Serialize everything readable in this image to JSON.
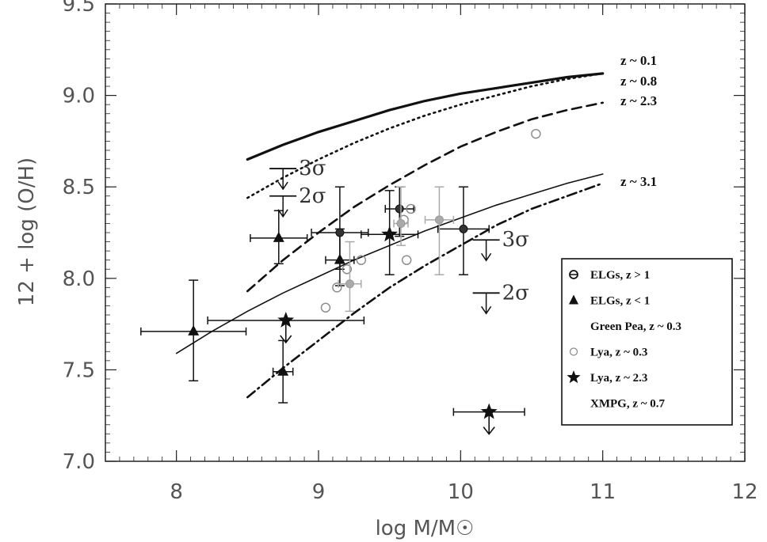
{
  "chart_data": {
    "type": "scatter",
    "xlabel": "log M/M☉",
    "ylabel": "12 + log (O/H)",
    "xlim": [
      7.5,
      12
    ],
    "ylim": [
      7.0,
      9.5
    ],
    "xticks": [
      "8",
      "9",
      "10",
      "11",
      "12"
    ],
    "yticks": [
      "7.0",
      "7.5",
      "8.0",
      "8.5",
      "9.0",
      "9.5"
    ],
    "grid": false,
    "legend_position": "right",
    "curves": [
      {
        "name": "z ~ 0.1",
        "style": "solid-thick",
        "x": [
          8.5,
          8.75,
          9.0,
          9.25,
          9.5,
          9.75,
          10.0,
          10.25,
          10.5,
          10.75,
          11.0
        ],
        "y": [
          8.65,
          8.73,
          8.8,
          8.86,
          8.92,
          8.97,
          9.01,
          9.04,
          9.07,
          9.1,
          9.12
        ]
      },
      {
        "name": "z ~ 0.8",
        "style": "dotted",
        "x": [
          8.5,
          8.75,
          9.0,
          9.25,
          9.5,
          9.75,
          10.0,
          10.25,
          10.5,
          10.75,
          11.0
        ],
        "y": [
          8.44,
          8.55,
          8.65,
          8.74,
          8.82,
          8.89,
          8.95,
          9.0,
          9.05,
          9.09,
          9.12
        ]
      },
      {
        "name": "z ~ 2.3",
        "style": "dashed",
        "x": [
          8.5,
          8.75,
          9.0,
          9.25,
          9.5,
          9.75,
          10.0,
          10.25,
          10.5,
          10.75,
          11.0
        ],
        "y": [
          7.93,
          8.1,
          8.25,
          8.39,
          8.51,
          8.62,
          8.72,
          8.8,
          8.87,
          8.92,
          8.96
        ]
      },
      {
        "name": "z ~ 3.1",
        "style": "solid-thin",
        "x": [
          8.0,
          8.25,
          8.5,
          8.75,
          9.0,
          9.25,
          9.5,
          9.75,
          10.0,
          10.25,
          10.5,
          10.75,
          11.0
        ],
        "y": [
          7.59,
          7.71,
          7.82,
          7.92,
          8.01,
          8.1,
          8.18,
          8.26,
          8.33,
          8.4,
          8.46,
          8.52,
          8.57
        ]
      },
      {
        "name": "",
        "style": "dash-dot",
        "x": [
          8.5,
          8.75,
          9.0,
          9.25,
          9.5,
          9.75,
          10.0,
          10.25,
          10.5,
          10.75,
          11.0
        ],
        "y": [
          7.35,
          7.51,
          7.66,
          7.81,
          7.95,
          8.07,
          8.18,
          8.29,
          8.38,
          8.45,
          8.52
        ]
      }
    ],
    "points": [
      {
        "series": "ELGs, z < 1",
        "marker": "triangle",
        "x": 8.12,
        "y": 7.71,
        "xerr": 0.37,
        "yerr_lo": 0.27,
        "yerr_hi": 0.28
      },
      {
        "series": "ELGs, z < 1",
        "marker": "triangle",
        "x": 8.72,
        "y": 8.22,
        "xerr": 0.2,
        "yerr_lo": 0.14,
        "yerr_hi": 0.15
      },
      {
        "series": "ELGs, z < 1",
        "marker": "triangle",
        "x": 9.15,
        "y": 8.1,
        "xerr": 0.1,
        "yerr_lo": 0.14,
        "yerr_hi": 0.17
      },
      {
        "series": "ELGs, z < 1",
        "marker": "triangle",
        "x": 8.75,
        "y": 7.49,
        "xerr": 0.07,
        "yerr_lo": 0.17,
        "yerr_hi": 0.17
      },
      {
        "series": "ELGs, z > 1",
        "marker": "circle-filled",
        "x": 9.15,
        "y": 8.25,
        "xerr": 0.2,
        "yerr_lo": 0.2,
        "yerr_hi": 0.25
      },
      {
        "series": "ELGs, z > 1",
        "marker": "circle-filled",
        "x": 9.57,
        "y": 8.38,
        "xerr": 0.1,
        "yerr_lo": 0.15,
        "yerr_hi": 0.12
      },
      {
        "series": "ELGs, z > 1",
        "marker": "circle-filled",
        "x": 10.02,
        "y": 8.27,
        "xerr": 0.18,
        "yerr_lo": 0.25,
        "yerr_hi": 0.23
      },
      {
        "series": "Lya, z ~ 2.3",
        "marker": "star",
        "x": 9.5,
        "y": 8.24,
        "xerr": 0.2,
        "yerr_lo": 0.22,
        "yerr_hi": 0.24
      },
      {
        "series": "Lya, z ~ 2.3",
        "marker": "star",
        "x": 8.77,
        "y": 7.77,
        "xerr": 0.55,
        "yerr_lo": 0.0,
        "yerr_hi": 0.0,
        "upper_limit": true
      },
      {
        "series": "Lya, z ~ 2.3",
        "marker": "star",
        "x": 10.2,
        "y": 7.27,
        "xerr": 0.25,
        "yerr_lo": 0.0,
        "yerr_hi": 0.0,
        "upper_limit": true
      },
      {
        "series": "Lya, z ~ 0.3",
        "marker": "circle-open",
        "x": 9.05,
        "y": 7.84
      },
      {
        "series": "Lya, z ~ 0.3",
        "marker": "circle-open",
        "x": 9.13,
        "y": 7.95
      },
      {
        "series": "Lya, z ~ 0.3",
        "marker": "circle-open",
        "x": 9.2,
        "y": 8.05
      },
      {
        "series": "Lya, z ~ 0.3",
        "marker": "circle-open",
        "x": 9.3,
        "y": 8.1
      },
      {
        "series": "Lya, z ~ 0.3",
        "marker": "circle-open",
        "x": 9.62,
        "y": 8.1
      },
      {
        "series": "Lya, z ~ 0.3",
        "marker": "circle-open",
        "x": 9.6,
        "y": 8.32
      },
      {
        "series": "Lya, z ~ 0.3",
        "marker": "circle-open",
        "x": 9.65,
        "y": 8.38
      },
      {
        "series": "Lya, z ~ 0.3",
        "marker": "circle-open",
        "x": 10.53,
        "y": 8.79
      },
      {
        "series": "Green Pea, z ~ 0.3",
        "marker": "circle-gray",
        "x": 9.22,
        "y": 7.97,
        "xerr": 0.08,
        "yerr_lo": 0.15,
        "yerr_hi": 0.23
      },
      {
        "series": "Green Pea, z ~ 0.3",
        "marker": "circle-gray",
        "x": 9.85,
        "y": 8.32,
        "xerr": 0.1,
        "yerr_lo": 0.3,
        "yerr_hi": 0.18
      },
      {
        "series": "Green Pea, z ~ 0.3",
        "marker": "circle-gray",
        "x": 9.58,
        "y": 8.3,
        "xerr": 0.05,
        "yerr_lo": 0.12,
        "yerr_hi": 0.2
      }
    ],
    "limits": [
      {
        "label": "3σ",
        "x": 8.75,
        "y": 8.6
      },
      {
        "label": "2σ",
        "x": 8.75,
        "y": 8.45
      },
      {
        "label": "3σ",
        "x": 10.18,
        "y": 8.21
      },
      {
        "label": "2σ",
        "x": 10.18,
        "y": 7.92
      }
    ],
    "legend": [
      {
        "marker": "circle-filled-e",
        "label": "ELGs, z > 1"
      },
      {
        "marker": "triangle",
        "label": "ELGs, z < 1"
      },
      {
        "marker": "none",
        "label": "Green Pea, z ~ 0.3"
      },
      {
        "marker": "circle-open",
        "label": "Lya, z ~ 0.3"
      },
      {
        "marker": "star",
        "label": "Lya, z ~ 2.3"
      },
      {
        "marker": "none",
        "label": "XMPG, z ~ 0.7"
      }
    ],
    "colors": {
      "curve": "#111111",
      "open_marker": "#888888",
      "gray_marker": "#aaaaaa"
    }
  }
}
